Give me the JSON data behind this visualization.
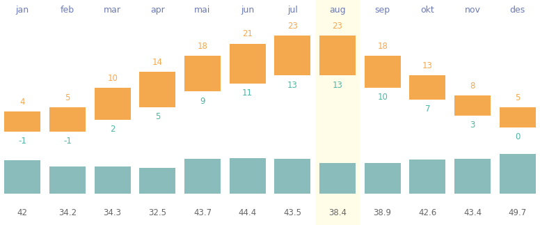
{
  "months": [
    "jan",
    "feb",
    "mar",
    "apr",
    "mai",
    "jun",
    "jul",
    "aug",
    "sep",
    "okt",
    "nov",
    "des"
  ],
  "temp_min": [
    -1,
    -1,
    2,
    5,
    9,
    11,
    13,
    13,
    10,
    7,
    3,
    0
  ],
  "temp_max": [
    4,
    5,
    10,
    14,
    18,
    21,
    23,
    23,
    18,
    13,
    8,
    5
  ],
  "rainfall": [
    42,
    34.2,
    34.3,
    32.5,
    43.7,
    44.4,
    43.5,
    38.4,
    38.9,
    42.6,
    43.4,
    49.7
  ],
  "bar_color_orange": "#f5a94e",
  "bar_color_teal": "#8bbcbc",
  "highlight_month_index": 7,
  "highlight_color": "#fffde8",
  "month_label_color": "#6b7ab5",
  "temp_max_color": "#f5a94e",
  "temp_min_color": "#4db5a5",
  "rainfall_label_color": "#666666",
  "background_color": "#ffffff",
  "fig_width": 7.76,
  "fig_height": 3.23
}
